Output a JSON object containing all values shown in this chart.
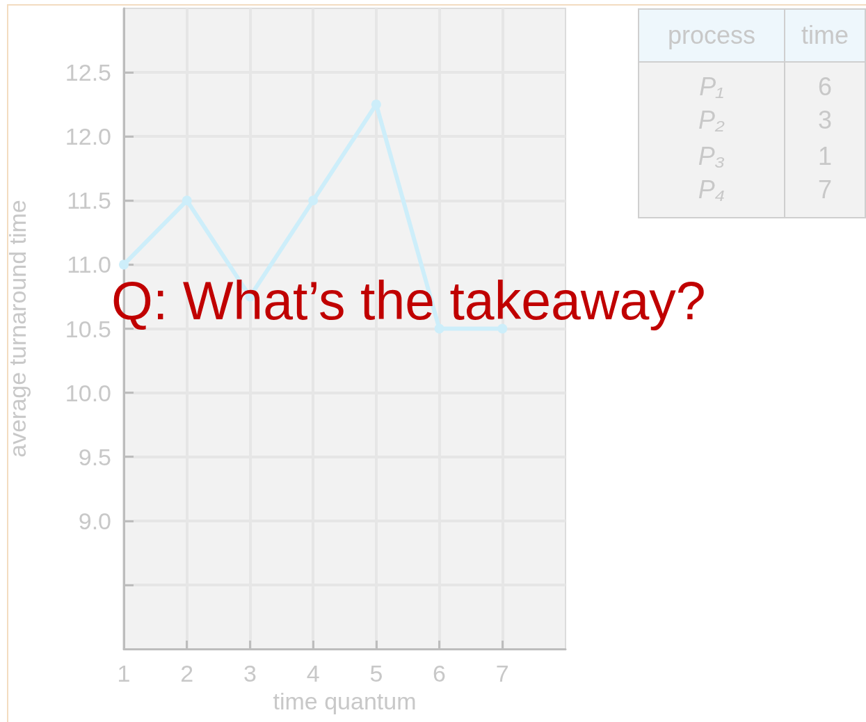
{
  "chart_data": [
    {
      "type": "line",
      "xlabel": "time quantum",
      "ylabel": "average turnaround time",
      "x": [
        1,
        2,
        3,
        4,
        5,
        6,
        7
      ],
      "series": [
        {
          "color": "#cdeefa",
          "values": [
            11.0,
            11.5,
            10.75,
            11.5,
            12.25,
            10.5,
            10.5
          ]
        }
      ],
      "xlim": [
        1,
        8
      ],
      "xticks": [
        1,
        2,
        3,
        4,
        5,
        6,
        7
      ],
      "ylim": [
        8,
        13
      ],
      "yticks": [
        {
          "value": 8.5,
          "label": null
        },
        {
          "value": 9,
          "label": "9.0"
        },
        {
          "value": 9.5,
          "label": "9.5"
        },
        {
          "value": 10,
          "label": "10.0"
        },
        {
          "value": 10.5,
          "label": "10.5"
        },
        {
          "value": 11,
          "label": "11.0"
        },
        {
          "value": 11.5,
          "label": "11.5"
        },
        {
          "value": 12,
          "label": "12.0"
        },
        {
          "value": 12.5,
          "label": "12.5"
        }
      ],
      "grid": true,
      "marker": "circle",
      "line_style": "solid",
      "annotations": [
        "Q: What’s the takeaway?"
      ]
    },
    {
      "type": "other",
      "xlabel": "process",
      "ylabel": "time",
      "categories": [
        "P₁",
        "P₂",
        "P₃",
        "P₄"
      ],
      "values": [
        6,
        3,
        1,
        7
      ],
      "data_labels": true
    }
  ]
}
